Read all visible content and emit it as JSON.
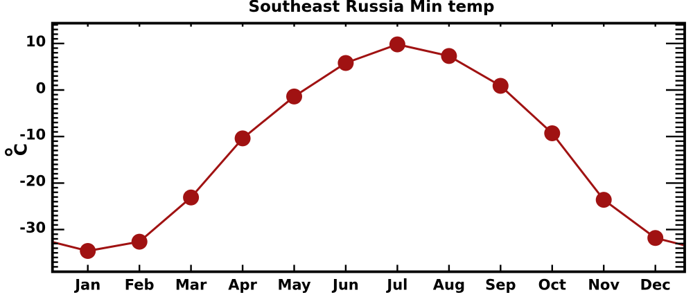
{
  "title": "Southeast Russia Min temp",
  "chart_data": {
    "type": "line",
    "title": "Southeast Russia Min temp",
    "ylabel": "°C",
    "xlabel": "",
    "categories": [
      "Jan",
      "Feb",
      "Mar",
      "Apr",
      "May",
      "Jun",
      "Jul",
      "Aug",
      "Sep",
      "Oct",
      "Nov",
      "Dec"
    ],
    "series": [
      {
        "name": "Min temp",
        "values": [
          -34.6,
          -32.6,
          -23.1,
          -10.4,
          -1.4,
          5.8,
          9.8,
          7.3,
          0.9,
          -9.3,
          -23.6,
          -31.8
        ]
      }
    ],
    "ylim": [
      -39.1,
      14.3
    ],
    "yticks": [
      10,
      0,
      -10,
      -20,
      -30
    ],
    "minor_tick_step": 1,
    "edge_wrap": {
      "left_from_value": -31.8,
      "right_to_value": -34.6
    },
    "line_color": "#A01212",
    "marker_color": "#A01212",
    "marker": "circle",
    "axis_color": "#000000",
    "background": "#FFFFFF",
    "grid": false,
    "legend": false
  }
}
